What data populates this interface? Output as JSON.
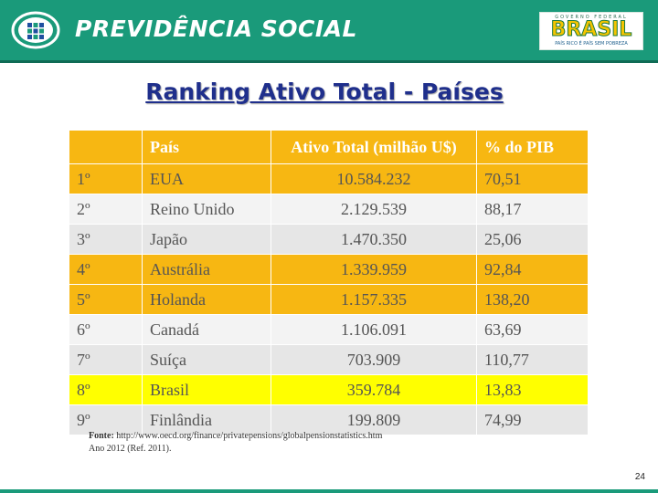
{
  "header": {
    "brand_title": "PREVIDÊNCIA SOCIAL",
    "logo_icon": "previdencia-logo-icon",
    "gov_logo": {
      "top": "GOVERNO FEDERAL",
      "word": "BRASIL",
      "tagline": "PAÍS RICO É PAÍS SEM POBREZA"
    },
    "colors": {
      "header_bg": "#1a9a7a",
      "highlight": "#f7b712",
      "brazil_row": "#ffff00",
      "title": "#1f2f8c"
    }
  },
  "title": "Ranking Ativo Total - Países",
  "table": {
    "headers": [
      "",
      "País",
      "Ativo Total (milhão U$)",
      "% do PIB"
    ],
    "rows": [
      {
        "rank": "1º",
        "country": "EUA",
        "assets": "10.584.232",
        "pib": "70,51",
        "style": "orange"
      },
      {
        "rank": "2º",
        "country": "Reino Unido",
        "assets": "2.129.539",
        "pib": "88,17",
        "style": "light"
      },
      {
        "rank": "3º",
        "country": "Japão",
        "assets": "1.470.350",
        "pib": "25,06",
        "style": "dark"
      },
      {
        "rank": "4º",
        "country": "Austrália",
        "assets": "1.339.959",
        "pib": "92,84",
        "style": "orange"
      },
      {
        "rank": "5º",
        "country": "Holanda",
        "assets": "1.157.335",
        "pib": "138,20",
        "style": "orange"
      },
      {
        "rank": "6º",
        "country": "Canadá",
        "assets": "1.106.091",
        "pib": "63,69",
        "style": "light"
      },
      {
        "rank": "7º",
        "country": "Suíça",
        "assets": "703.909",
        "pib": "110,77",
        "style": "dark"
      },
      {
        "rank": "8º",
        "country": "Brasil",
        "assets": "359.784",
        "pib": "13,83",
        "style": "yellow"
      },
      {
        "rank": "9º",
        "country": "Finlândia",
        "assets": "199.809",
        "pib": "74,99",
        "style": "dark"
      }
    ]
  },
  "source": {
    "label": "Fonte:",
    "url": "http://www.oecd.org/finance/privatepensions/globalpensionstatistics.htm",
    "note": "Ano 2012 (Ref. 2011)."
  },
  "page_number": "24"
}
